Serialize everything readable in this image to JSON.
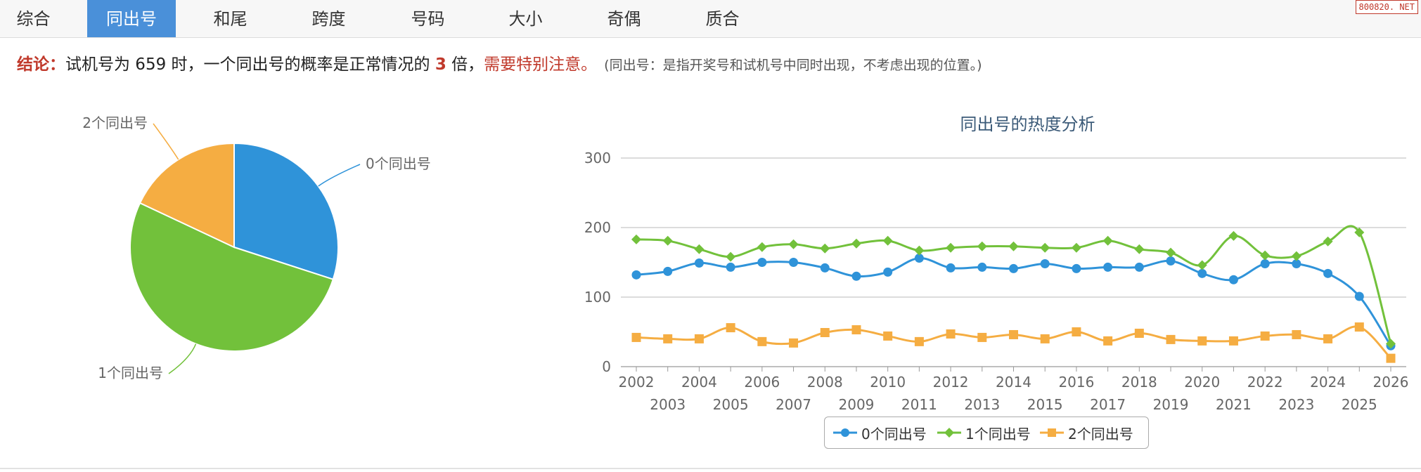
{
  "tabs": [
    {
      "label": "综合",
      "active": false
    },
    {
      "label": "同出号",
      "active": true
    },
    {
      "label": "和尾",
      "active": false
    },
    {
      "label": "跨度",
      "active": false
    },
    {
      "label": "号码",
      "active": false
    },
    {
      "label": "大小",
      "active": false
    },
    {
      "label": "奇偶",
      "active": false
    },
    {
      "label": "质合",
      "active": false
    }
  ],
  "watermark": "800820. NET",
  "conclusion": {
    "label": "结论：",
    "text1": "试机号为 659 时，一个同出号的概率是正常情况的 ",
    "multiplier": "3",
    "text2": " 倍，",
    "warning": "需要特别注意。",
    "note": "(同出号：是指开奖号和试机号中同时出现，不考虑出现的位置。)"
  },
  "colors": {
    "accent": "#4a90d9",
    "warning": "#c0392b",
    "series0": "#2f93d9",
    "series1": "#72c13b",
    "series2": "#f5ad42"
  },
  "chart_data": [
    {
      "type": "pie",
      "series": [
        {
          "name": "0个同出号",
          "value": 30
        },
        {
          "name": "1个同出号",
          "value": 52
        },
        {
          "name": "2个同出号",
          "value": 18
        }
      ]
    },
    {
      "type": "line",
      "title": "同出号的热度分析",
      "x": [
        "2002",
        "2003",
        "2004",
        "2005",
        "2006",
        "2007",
        "2008",
        "2009",
        "2010",
        "2011",
        "2012",
        "2013",
        "2014",
        "2015",
        "2016",
        "2017",
        "2018",
        "2019",
        "2020",
        "2021",
        "2022",
        "2023",
        "2024",
        "2025",
        "2026"
      ],
      "ylim": [
        0,
        300
      ],
      "yticks": [
        0,
        100,
        200,
        300
      ],
      "grid": true,
      "legend_position": "bottom-center",
      "series": [
        {
          "name": "0个同出号",
          "marker": "circle",
          "values": [
            132,
            137,
            149,
            143,
            150,
            150,
            142,
            130,
            136,
            156,
            142,
            143,
            141,
            148,
            141,
            143,
            143,
            152,
            134,
            125,
            148,
            148,
            134,
            101,
            30
          ]
        },
        {
          "name": "1个同出号",
          "marker": "diamond",
          "values": [
            183,
            181,
            169,
            158,
            172,
            176,
            170,
            177,
            181,
            167,
            171,
            173,
            173,
            171,
            171,
            181,
            169,
            164,
            146,
            188,
            160,
            159,
            180,
            193,
            33
          ]
        },
        {
          "name": "2个同出号",
          "marker": "square",
          "values": [
            42,
            40,
            40,
            56,
            36,
            34,
            49,
            53,
            44,
            36,
            47,
            42,
            46,
            40,
            50,
            37,
            48,
            39,
            37,
            37,
            44,
            46,
            40,
            57,
            12
          ]
        }
      ]
    }
  ]
}
